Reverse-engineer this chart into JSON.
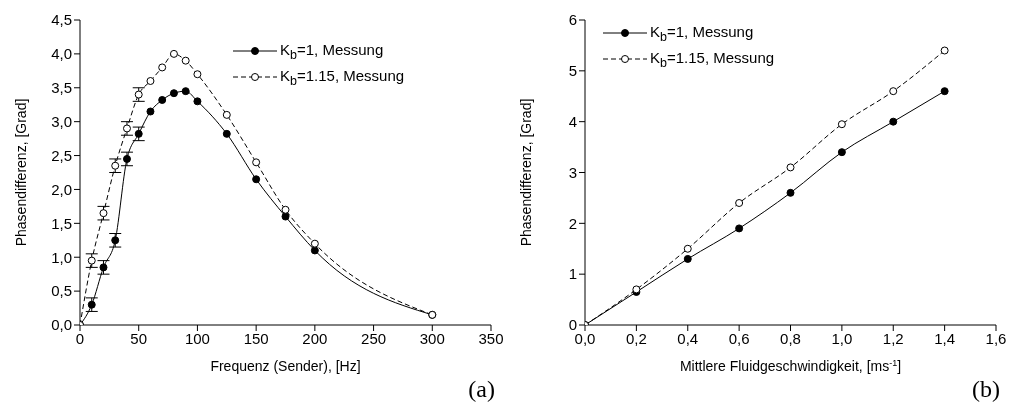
{
  "chart_data": [
    {
      "type": "line",
      "xlabel": "Frequenz (Sender), [Hz]",
      "ylabel": "Phasendifferenz, [Grad]",
      "annotations": [
        "(a)"
      ],
      "x": [
        0,
        10,
        20,
        30,
        40,
        50,
        60,
        70,
        80,
        90,
        100,
        125,
        150,
        175,
        200,
        300
      ],
      "series": [
        {
          "name": "K$_{b}$=1, Messung",
          "color": "#000000",
          "line_style": "solid",
          "values": [
            0,
            0.3,
            0.85,
            1.25,
            2.45,
            2.82,
            3.15,
            3.32,
            3.42,
            3.45,
            3.3,
            2.82,
            2.15,
            1.6,
            1.1,
            0.15
          ],
          "errors": [
            null,
            0.1,
            0.1,
            0.1,
            0.1,
            0.1,
            null,
            null,
            null,
            null,
            null,
            null,
            null,
            null,
            null,
            null
          ]
        },
        {
          "name": "K$_{b}$=1.15, Messung",
          "color": "#000000",
          "line_style": "dashed",
          "values": [
            0,
            0.95,
            1.65,
            2.35,
            2.9,
            3.4,
            3.6,
            3.8,
            4.0,
            3.9,
            3.7,
            3.1,
            2.4,
            1.7,
            1.2,
            0.15
          ],
          "errors": [
            null,
            0.1,
            0.1,
            0.1,
            0.1,
            0.1,
            null,
            null,
            null,
            null,
            null,
            null,
            null,
            null,
            null,
            null
          ]
        }
      ],
      "xlim": [
        0,
        350
      ],
      "xticks": [
        0,
        50,
        100,
        150,
        200,
        250,
        300,
        350
      ],
      "ylim": [
        0,
        4.5
      ],
      "yticks": [
        {
          "value": 0,
          "label": "0,0"
        },
        {
          "value": 0.5,
          "label": "0,5"
        },
        {
          "value": 1,
          "label": "1,0"
        },
        {
          "value": 1.5,
          "label": "1,5"
        },
        {
          "value": 2,
          "label": "2,0"
        },
        {
          "value": 2.5,
          "label": "2,5"
        },
        {
          "value": 3,
          "label": "3,0"
        },
        {
          "value": 3.5,
          "label": "3,5"
        },
        {
          "value": 4,
          "label": "4,0"
        },
        {
          "value": 4.5,
          "label": "4,5"
        }
      ],
      "marker": "circle",
      "legend": "top right",
      "grid": false
    },
    {
      "type": "line",
      "xlabel": "Mittlere Fluidgeschwindigkeit, [ms$^{-1}$]",
      "ylabel": "Phasendifferenz, [Grad]",
      "annotations": [
        "(b)"
      ],
      "x": [
        0,
        0.2,
        0.4,
        0.6,
        0.8,
        1.0,
        1.2,
        1.4
      ],
      "series": [
        {
          "name": "K$_{b}$=1, Messung",
          "color": "#000000",
          "line_style": "solid",
          "values": [
            0,
            0.65,
            1.3,
            1.9,
            2.6,
            3.4,
            4.0,
            4.6
          ]
        },
        {
          "name": "K$_{b}$=1.15, Messung",
          "color": "#000000",
          "line_style": "dashed",
          "values": [
            0,
            0.7,
            1.5,
            2.4,
            3.1,
            3.95,
            4.6,
            5.4
          ]
        }
      ],
      "xlim": [
        0,
        1.6
      ],
      "xticks": [
        {
          "value": 0,
          "label": "0,0"
        },
        {
          "value": 0.2,
          "label": "0,2"
        },
        {
          "value": 0.4,
          "label": "0,4"
        },
        {
          "value": 0.6,
          "label": "0,6"
        },
        {
          "value": 0.8,
          "label": "0,8"
        },
        {
          "value": 1.0,
          "label": "1,0"
        },
        {
          "value": 1.2,
          "label": "1,2"
        },
        {
          "value": 1.4,
          "label": "1,4"
        },
        {
          "value": 1.6,
          "label": "1,6"
        }
      ],
      "ylim": [
        0,
        6
      ],
      "yticks": [
        0,
        1,
        2,
        3,
        4,
        5,
        6
      ],
      "marker": "circle",
      "legend": "top left",
      "grid": false
    }
  ]
}
